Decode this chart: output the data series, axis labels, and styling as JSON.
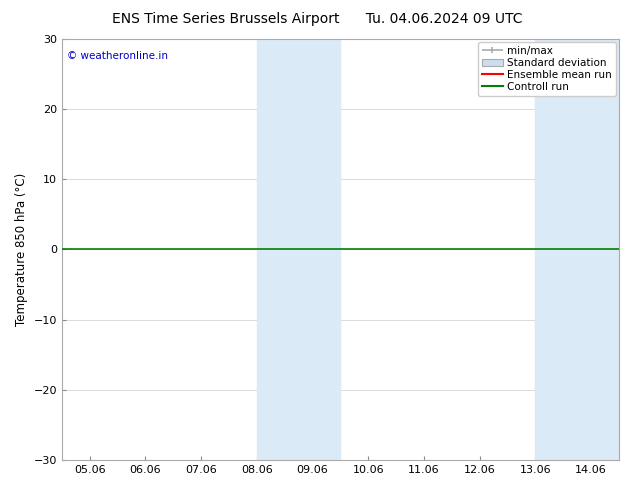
{
  "title_left": "ENS Time Series Brussels Airport",
  "title_right": "Tu. 04.06.2024 09 UTC",
  "ylabel": "Temperature 850 hPa (°C)",
  "ylim": [
    -30,
    30
  ],
  "yticks": [
    -30,
    -20,
    -10,
    0,
    10,
    20,
    30
  ],
  "x_tick_labels": [
    "05.06",
    "06.06",
    "07.06",
    "08.06",
    "09.06",
    "10.06",
    "11.06",
    "12.06",
    "13.06",
    "14.06"
  ],
  "x_tick_positions": [
    0,
    1,
    2,
    3,
    4,
    5,
    6,
    7,
    8,
    9
  ],
  "xlim": [
    -0.5,
    9.5
  ],
  "shade_bands": [
    {
      "x_start": 3.0,
      "x_end": 4.5,
      "color": "#daeaf7"
    },
    {
      "x_start": 8.0,
      "x_end": 9.5,
      "color": "#daeaf7"
    }
  ],
  "hline_y": 0,
  "hline_color": "#008000",
  "hline_lw": 1.2,
  "watermark_text": "© weatheronline.in",
  "watermark_color": "#0000cc",
  "legend_labels": [
    "min/max",
    "Standard deviation",
    "Ensemble mean run",
    "Controll run"
  ],
  "legend_colors": [
    "#aaaaaa",
    "#ccddee",
    "red",
    "#008000"
  ],
  "background_color": "#ffffff",
  "grid_color": "#cccccc",
  "title_fontsize": 10,
  "axis_fontsize": 8.5,
  "tick_fontsize": 8,
  "legend_fontsize": 7.5
}
